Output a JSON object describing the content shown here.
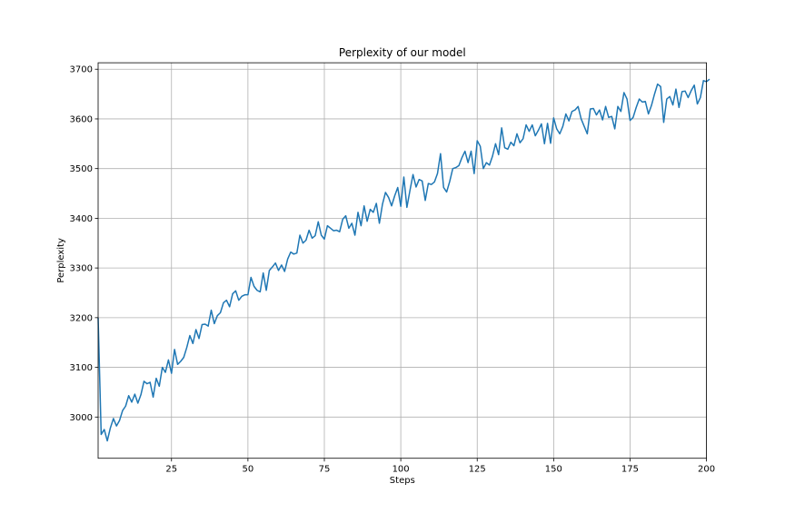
{
  "chart_data": {
    "type": "line",
    "title": "Perplexity of our model",
    "xlabel": "Steps",
    "ylabel": "Perplexity",
    "xlim": [
      1,
      200
    ],
    "ylim": [
      2917,
      3713
    ],
    "x_ticks": [
      25,
      50,
      75,
      100,
      125,
      150,
      175,
      200
    ],
    "y_ticks": [
      3000,
      3100,
      3200,
      3300,
      3400,
      3500,
      3600,
      3700
    ],
    "grid": true,
    "line_color": "#1f77b4",
    "series": [
      {
        "x_start": 1,
        "x_step": 1,
        "values": [
          3200,
          2965,
          2975,
          2952,
          2978,
          2997,
          2982,
          2993,
          3013,
          3022,
          3043,
          3030,
          3046,
          3028,
          3045,
          3072,
          3067,
          3070,
          3040,
          3078,
          3062,
          3100,
          3090,
          3115,
          3088,
          3136,
          3106,
          3112,
          3120,
          3140,
          3164,
          3148,
          3176,
          3158,
          3186,
          3187,
          3183,
          3215,
          3188,
          3204,
          3210,
          3230,
          3235,
          3222,
          3248,
          3254,
          3235,
          3243,
          3246,
          3246,
          3281,
          3263,
          3255,
          3252,
          3290,
          3255,
          3295,
          3302,
          3310,
          3295,
          3306,
          3293,
          3318,
          3332,
          3328,
          3330,
          3366,
          3350,
          3356,
          3376,
          3360,
          3365,
          3393,
          3366,
          3358,
          3385,
          3380,
          3375,
          3376,
          3373,
          3398,
          3405,
          3380,
          3390,
          3366,
          3412,
          3385,
          3425,
          3394,
          3418,
          3412,
          3430,
          3390,
          3428,
          3452,
          3442,
          3425,
          3445,
          3462,
          3424,
          3483,
          3422,
          3456,
          3488,
          3463,
          3478,
          3475,
          3436,
          3470,
          3468,
          3473,
          3490,
          3530,
          3462,
          3453,
          3474,
          3500,
          3502,
          3506,
          3522,
          3535,
          3512,
          3535,
          3490,
          3556,
          3545,
          3500,
          3512,
          3507,
          3525,
          3550,
          3528,
          3582,
          3542,
          3539,
          3553,
          3546,
          3570,
          3552,
          3560,
          3588,
          3575,
          3588,
          3566,
          3577,
          3590,
          3550,
          3591,
          3551,
          3602,
          3580,
          3570,
          3585,
          3610,
          3596,
          3615,
          3618,
          3625,
          3600,
          3585,
          3570,
          3620,
          3621,
          3608,
          3618,
          3598,
          3625,
          3603,
          3605,
          3580,
          3625,
          3615,
          3653,
          3640,
          3597,
          3603,
          3623,
          3640,
          3634,
          3635,
          3610,
          3627,
          3650,
          3670,
          3665,
          3593,
          3640,
          3645,
          3628,
          3660,
          3623,
          3655,
          3656,
          3643,
          3657,
          3668,
          3630,
          3643,
          3677,
          3675,
          3680
        ]
      }
    ]
  }
}
